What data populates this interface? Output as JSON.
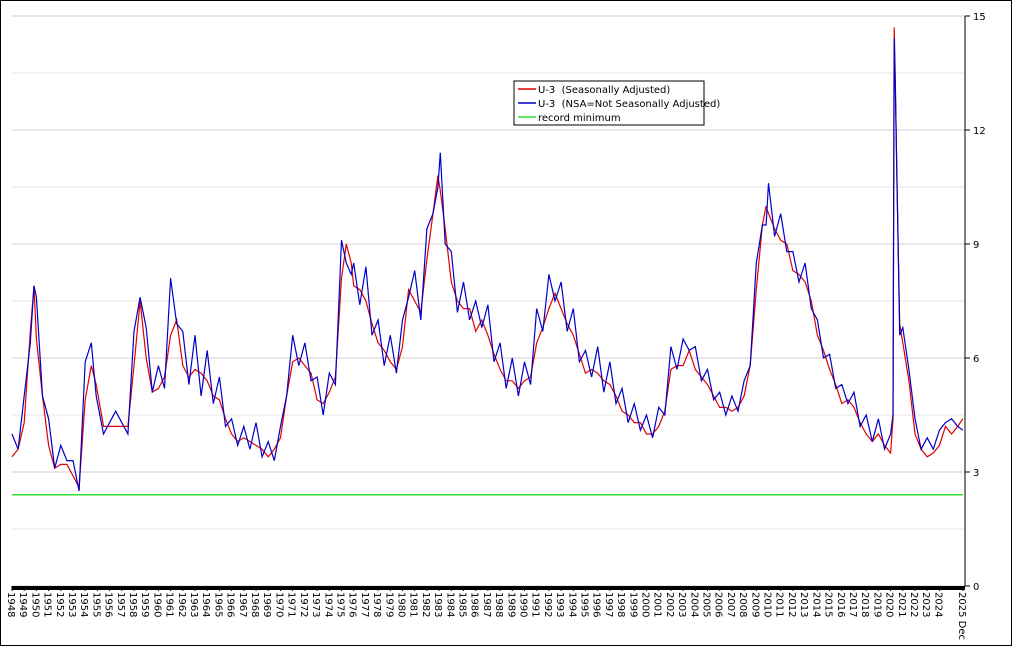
{
  "chart_data": {
    "type": "line",
    "x": [
      1948.0,
      1948.5,
      1949.0,
      1949.5,
      1949.8,
      1950.0,
      1950.5,
      1951.0,
      1951.5,
      1952.0,
      1952.5,
      1953.0,
      1953.5,
      1954.0,
      1954.5,
      1954.9,
      1955.5,
      1956.5,
      1957.5,
      1958.0,
      1958.5,
      1959.0,
      1959.5,
      1960.0,
      1960.5,
      1961.0,
      1961.5,
      1962.0,
      1962.5,
      1963.0,
      1963.5,
      1964.0,
      1964.5,
      1965.0,
      1965.5,
      1966.0,
      1966.5,
      1967.0,
      1967.5,
      1968.0,
      1968.5,
      1969.0,
      1969.5,
      1970.0,
      1970.5,
      1971.0,
      1971.5,
      1972.0,
      1972.5,
      1973.0,
      1973.5,
      1974.0,
      1974.5,
      1975.0,
      1975.4,
      1975.8,
      1976.0,
      1976.5,
      1977.0,
      1977.5,
      1978.0,
      1978.5,
      1979.0,
      1979.5,
      1980.0,
      1980.5,
      1981.0,
      1981.5,
      1982.0,
      1982.5,
      1982.9,
      1983.1,
      1983.5,
      1984.0,
      1984.5,
      1985.0,
      1985.5,
      1986.0,
      1986.5,
      1987.0,
      1987.5,
      1988.0,
      1988.5,
      1989.0,
      1989.5,
      1990.0,
      1990.5,
      1991.0,
      1991.5,
      1992.0,
      1992.5,
      1993.0,
      1993.5,
      1994.0,
      1994.5,
      1995.0,
      1995.5,
      1996.0,
      1996.5,
      1997.0,
      1997.5,
      1998.0,
      1998.5,
      1999.0,
      1999.5,
      2000.0,
      2000.5,
      2001.0,
      2001.5,
      2002.0,
      2002.5,
      2003.0,
      2003.5,
      2004.0,
      2004.5,
      2005.0,
      2005.5,
      2006.0,
      2006.5,
      2007.0,
      2007.5,
      2008.0,
      2008.5,
      2009.0,
      2009.5,
      2009.8,
      2010.0,
      2010.5,
      2011.0,
      2011.5,
      2012.0,
      2012.5,
      2013.0,
      2013.5,
      2014.0,
      2014.5,
      2015.0,
      2015.5,
      2016.0,
      2016.5,
      2017.0,
      2017.5,
      2018.0,
      2018.5,
      2019.0,
      2019.5,
      2020.0,
      2020.2,
      2020.3,
      2020.4,
      2020.5,
      2020.75,
      2021.0,
      2021.5,
      2022.0,
      2022.5,
      2023.0,
      2023.5,
      2024.0,
      2024.5,
      2025.0,
      2025.5,
      2025.92
    ],
    "series": [
      {
        "name": "U-3  (Seasonally Adjusted)",
        "color": "#e00000",
        "values": [
          3.4,
          3.6,
          4.3,
          6.7,
          7.9,
          6.5,
          5.0,
          3.7,
          3.1,
          3.2,
          3.2,
          2.9,
          2.6,
          4.9,
          5.8,
          5.3,
          4.2,
          4.2,
          4.2,
          5.8,
          7.5,
          6.0,
          5.1,
          5.2,
          5.5,
          6.6,
          7.0,
          5.8,
          5.5,
          5.7,
          5.6,
          5.4,
          5.0,
          4.9,
          4.4,
          4.0,
          3.8,
          3.9,
          3.8,
          3.7,
          3.6,
          3.4,
          3.6,
          3.9,
          5.0,
          5.9,
          6.0,
          5.8,
          5.6,
          4.9,
          4.8,
          5.1,
          5.5,
          8.1,
          9.0,
          8.5,
          7.9,
          7.8,
          7.5,
          6.9,
          6.4,
          6.2,
          5.9,
          5.7,
          6.3,
          7.8,
          7.5,
          7.2,
          8.6,
          9.8,
          10.8,
          10.4,
          9.4,
          8.0,
          7.5,
          7.3,
          7.3,
          6.7,
          7.0,
          6.6,
          6.1,
          5.7,
          5.4,
          5.4,
          5.2,
          5.4,
          5.5,
          6.4,
          6.8,
          7.3,
          7.7,
          7.3,
          6.9,
          6.6,
          6.1,
          5.6,
          5.7,
          5.6,
          5.4,
          5.3,
          5.0,
          4.6,
          4.5,
          4.3,
          4.3,
          4.0,
          4.0,
          4.2,
          4.6,
          5.7,
          5.8,
          5.8,
          6.2,
          5.7,
          5.5,
          5.3,
          5.0,
          4.7,
          4.7,
          4.6,
          4.7,
          5.0,
          5.8,
          7.8,
          9.5,
          10.0,
          9.8,
          9.4,
          9.1,
          9.0,
          8.3,
          8.2,
          8.0,
          7.5,
          6.6,
          6.2,
          5.7,
          5.3,
          4.8,
          4.9,
          4.7,
          4.3,
          4.0,
          3.8,
          4.0,
          3.7,
          3.5,
          4.4,
          14.7,
          13.2,
          11.0,
          6.9,
          6.4,
          5.4,
          4.0,
          3.6,
          3.4,
          3.5,
          3.7,
          4.2,
          4.0,
          4.2,
          4.4
        ]
      },
      {
        "name": "U-3  (NSA=Not Seasonally Adjusted)",
        "color": "#0000c8",
        "values": [
          4.0,
          3.6,
          5.0,
          6.4,
          7.9,
          7.6,
          5.0,
          4.4,
          3.1,
          3.7,
          3.3,
          3.3,
          2.5,
          5.9,
          6.4,
          5.0,
          4.0,
          4.6,
          4.0,
          6.7,
          7.6,
          6.8,
          5.1,
          5.8,
          5.2,
          8.1,
          6.9,
          6.7,
          5.3,
          6.6,
          5.0,
          6.2,
          4.8,
          5.5,
          4.2,
          4.4,
          3.7,
          4.2,
          3.6,
          4.3,
          3.4,
          3.8,
          3.3,
          4.2,
          5.0,
          6.6,
          5.8,
          6.4,
          5.4,
          5.5,
          4.5,
          5.6,
          5.3,
          9.1,
          8.5,
          8.2,
          8.5,
          7.4,
          8.4,
          6.6,
          7.0,
          5.8,
          6.6,
          5.6,
          7.0,
          7.6,
          8.3,
          7.0,
          9.4,
          9.8,
          10.5,
          11.4,
          9.0,
          8.8,
          7.2,
          8.0,
          7.0,
          7.5,
          6.8,
          7.4,
          5.9,
          6.4,
          5.2,
          6.0,
          5.0,
          5.9,
          5.3,
          7.3,
          6.7,
          8.2,
          7.5,
          8.0,
          6.7,
          7.3,
          5.9,
          6.2,
          5.5,
          6.3,
          5.1,
          5.9,
          4.8,
          5.2,
          4.3,
          4.8,
          4.1,
          4.5,
          3.9,
          4.7,
          4.5,
          6.3,
          5.7,
          6.5,
          6.2,
          6.3,
          5.4,
          5.7,
          4.9,
          5.1,
          4.5,
          5.0,
          4.6,
          5.4,
          5.8,
          8.5,
          9.5,
          9.5,
          10.6,
          9.2,
          9.8,
          8.8,
          8.8,
          8.0,
          8.5,
          7.3,
          7.0,
          6.0,
          6.1,
          5.2,
          5.3,
          4.8,
          5.1,
          4.2,
          4.5,
          3.8,
          4.4,
          3.6,
          4.0,
          4.5,
          14.4,
          13.0,
          11.1,
          6.6,
          6.8,
          5.7,
          4.4,
          3.6,
          3.9,
          3.6,
          4.1,
          4.3,
          4.4,
          4.2,
          4.1
        ]
      },
      {
        "name": "record minimum",
        "color": "#33dd33",
        "x": [
          1948.0,
          2025.92
        ],
        "values": [
          2.4,
          2.4
        ]
      }
    ],
    "xlim": [
      1948,
      2026.1
    ],
    "xticks": [
      1948,
      1949,
      1950,
      1951,
      1952,
      1953,
      1954,
      1955,
      1956,
      1957,
      1958,
      1959,
      1960,
      1961,
      1962,
      1963,
      1964,
      1965,
      1966,
      1967,
      1968,
      1969,
      1970,
      1971,
      1972,
      1973,
      1974,
      1975,
      1976,
      1977,
      1978,
      1979,
      1980,
      1981,
      1982,
      1983,
      1984,
      1985,
      1986,
      1987,
      1988,
      1989,
      1990,
      1991,
      1992,
      1993,
      1994,
      1995,
      1996,
      1997,
      1998,
      1999,
      2000,
      2001,
      2002,
      2003,
      2004,
      2005,
      2006,
      2007,
      2008,
      2009,
      2010,
      2011,
      2012,
      2013,
      2014,
      2015,
      2016,
      2017,
      2018,
      2019,
      2020,
      2021,
      2022,
      2023,
      2024,
      {
        "value": 2025.92,
        "label": "2025 Dec"
      }
    ],
    "ylim": [
      0,
      15
    ],
    "yticks": [
      0,
      3,
      6,
      9,
      12,
      15
    ],
    "minor_grid": [
      1.5,
      4.5,
      7.5,
      10.5,
      13.5
    ],
    "grid": true,
    "legend": "top-center"
  }
}
